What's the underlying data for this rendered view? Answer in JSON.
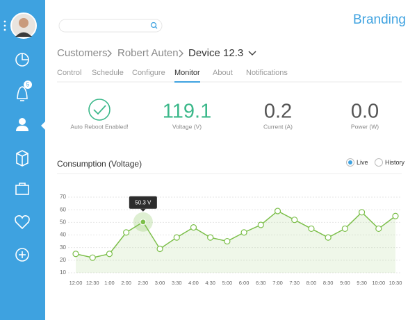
{
  "header": {
    "brand": "Branding",
    "badge": "5"
  },
  "breadcrumb": [
    "Customers",
    "Robert Auten",
    "Device 12.3"
  ],
  "tabs": [
    "Control",
    "Schedule",
    "Configure",
    "Monitor",
    "About",
    "Notifications"
  ],
  "status": "Auto Reboot Enabled!",
  "stats": [
    {
      "value": "119.1",
      "label": "Voltage (V)"
    },
    {
      "value": "0.2",
      "label": "Current (A)"
    },
    {
      "value": "0.0",
      "label": "Power (W)"
    }
  ],
  "chart_controls": [
    "Live",
    "History"
  ],
  "chart_data": {
    "type": "line",
    "title": "Consumption (Voltage)",
    "categories": [
      "12:00",
      "12:30",
      "1:00",
      "2:00",
      "2:30",
      "3:00",
      "3:30",
      "4:00",
      "4:30",
      "5:00",
      "6:00",
      "6:30",
      "7:00",
      "7:30",
      "8:00",
      "8:30",
      "9:00",
      "9:30",
      "10:00",
      "10:30"
    ],
    "values": [
      25,
      22,
      25,
      42,
      50.3,
      29,
      38,
      46,
      38,
      35,
      42,
      48,
      59,
      52,
      45,
      38,
      45,
      58,
      45,
      55
    ],
    "value_labels": [
      null,
      null,
      null,
      null,
      "50.3 V",
      null,
      null,
      null,
      null,
      null,
      null,
      null,
      null,
      null,
      null,
      null,
      null,
      null,
      null,
      null
    ],
    "color": "#7cbf4a",
    "ylim": [
      10,
      70
    ],
    "yticks": [
      10,
      20,
      30,
      40,
      50,
      60,
      70
    ],
    "grid": true
  }
}
